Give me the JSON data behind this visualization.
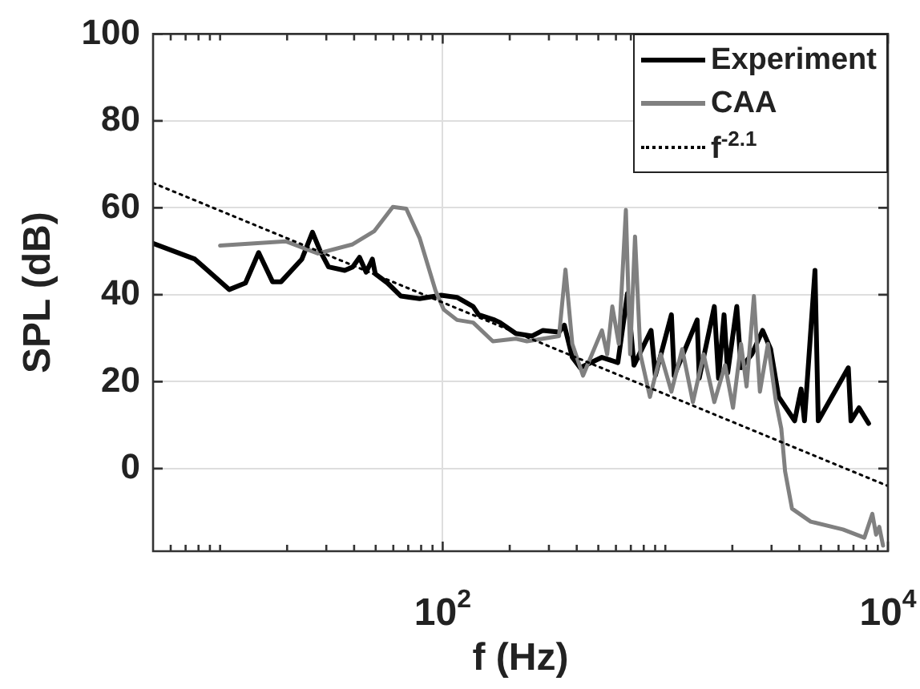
{
  "chart_data": {
    "type": "line",
    "xlabel": "f (Hz)",
    "ylabel": "SPL (dB)",
    "log": "x",
    "grid": true,
    "legend": "top right",
    "marker": "none",
    "xlim": [
      5,
      10000
    ],
    "ylim": [
      -19,
      100
    ],
    "xticks": [
      {
        "value": 6,
        "label": null
      },
      {
        "value": 7,
        "label": null
      },
      {
        "value": 8,
        "label": null
      },
      {
        "value": 9,
        "label": null
      },
      {
        "value": 10,
        "label": null
      },
      {
        "value": 20,
        "label": null
      },
      {
        "value": 30,
        "label": null
      },
      {
        "value": 40,
        "label": null
      },
      {
        "value": 50,
        "label": null
      },
      {
        "value": 60,
        "label": null
      },
      {
        "value": 70,
        "label": null
      },
      {
        "value": 80,
        "label": null
      },
      {
        "value": 90,
        "label": null
      },
      {
        "value": 100,
        "label": "10$^{2}$"
      },
      {
        "value": 200,
        "label": null
      },
      {
        "value": 300,
        "label": null
      },
      {
        "value": 400,
        "label": null
      },
      {
        "value": 500,
        "label": null
      },
      {
        "value": 600,
        "label": null
      },
      {
        "value": 700,
        "label": null
      },
      {
        "value": 800,
        "label": null
      },
      {
        "value": 900,
        "label": null
      },
      {
        "value": 1000,
        "label": null
      },
      {
        "value": 2000,
        "label": null
      },
      {
        "value": 3000,
        "label": null
      },
      {
        "value": 4000,
        "label": null
      },
      {
        "value": 5000,
        "label": null
      },
      {
        "value": 6000,
        "label": null
      },
      {
        "value": 7000,
        "label": null
      },
      {
        "value": 8000,
        "label": null
      },
      {
        "value": 9000,
        "label": null
      },
      {
        "value": 10000,
        "label": "10$^{4}$"
      }
    ],
    "yticks": [
      0,
      20,
      40,
      60,
      80,
      100
    ],
    "series": [
      {
        "name": "Experiment",
        "color": "#000000",
        "x": [
          5,
          7.7,
          11,
          13,
          14.9,
          17.2,
          18.8,
          23.3,
          26,
          28.2,
          30.7,
          36.3,
          39.4,
          42.3,
          45.3,
          48.3,
          49.8,
          56.5,
          64.9,
          78.7,
          98.4,
          116,
          137,
          145,
          171,
          181,
          213,
          252,
          282,
          333,
          352,
          382,
          415,
          519,
          612,
          676,
          723,
          863,
          902,
          1065,
          1096,
          1390,
          1420,
          1660,
          1734,
          1836,
          1906,
          2094,
          2188,
          2447,
          2735,
          2972,
          3228,
          3811,
          4073,
          4217,
          4702,
          4864,
          6637,
          6823,
          7413,
          8186
        ],
        "values": [
          51.8,
          48.2,
          41.2,
          42.7,
          49.7,
          43,
          43,
          48.2,
          54.4,
          50,
          46.4,
          45.6,
          46.4,
          48.6,
          45.2,
          48.2,
          44.8,
          42.7,
          39.7,
          39.1,
          39.9,
          39.4,
          37.3,
          35.4,
          34.2,
          33.6,
          31.1,
          30.5,
          31.8,
          31.4,
          33,
          25.6,
          23.2,
          25.6,
          24.4,
          40.3,
          23.8,
          31.8,
          21.4,
          35.4,
          21.4,
          34.2,
          20.8,
          37.3,
          20.8,
          35.4,
          22,
          37.3,
          23.2,
          26.3,
          31.8,
          27.5,
          16.5,
          11,
          18.3,
          11,
          45.6,
          11,
          23.2,
          11,
          14,
          10.4
        ]
      },
      {
        "name": "CAA",
        "color": "#808080",
        "x": [
          10,
          19.7,
          27.5,
          39.4,
          49.2,
          59.7,
          68.6,
          78.7,
          92.9,
          101,
          116,
          137,
          168,
          213,
          239,
          333,
          356,
          382,
          427,
          519,
          548,
          578,
          618,
          665,
          695,
          731,
          773,
          853,
          953,
          1065,
          1191,
          1330,
          1486,
          1660,
          1855,
          2014,
          2188,
          2317,
          2500,
          2660,
          2891,
          3141,
          3319,
          3451,
          3707,
          4498,
          6281,
          7834,
          8511,
          8845,
          9141,
          9506
        ],
        "values": [
          51.3,
          52.3,
          49.5,
          51.6,
          54.6,
          60.2,
          59.8,
          53.1,
          40.9,
          36.6,
          34.2,
          33.6,
          29.3,
          29.9,
          29.3,
          30.5,
          45.8,
          28.7,
          21.4,
          31.8,
          26.3,
          37.3,
          28.7,
          59.5,
          26.3,
          53.4,
          26.3,
          16.5,
          26.3,
          17.7,
          27.5,
          15.3,
          26.3,
          15.3,
          23.8,
          14,
          28.7,
          18.9,
          39.7,
          17.7,
          28.7,
          15.3,
          9.2,
          -0.6,
          -9.2,
          -12.2,
          -14,
          -15.9,
          -10.4,
          -15.2,
          -13.4,
          -17.7
        ]
      },
      {
        "name": "f$^{-2.1}$",
        "color": "#000000",
        "line_style": "dotted",
        "x": [
          5,
          10000
        ],
        "values": [
          65.7,
          -4
        ]
      }
    ]
  }
}
